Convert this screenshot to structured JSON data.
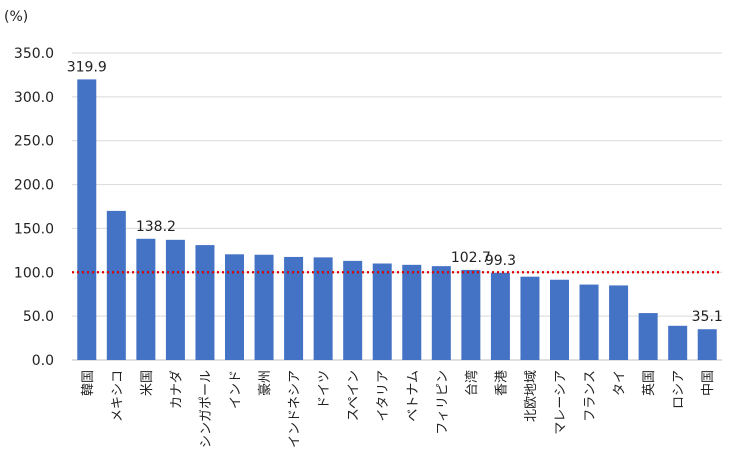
{
  "chart_data": {
    "type": "bar",
    "unit_label": "(%)",
    "categories": [
      "韓国",
      "メキシコ",
      "米国",
      "カナダ",
      "シンガポール",
      "インド",
      "豪州",
      "インドネシア",
      "ドイツ",
      "スペイン",
      "イタリア",
      "ベトナム",
      "フィリピン",
      "台湾",
      "香港",
      "北欧地域",
      "マレーシア",
      "フランス",
      "タイ",
      "英国",
      "ロシア",
      "中国"
    ],
    "values": [
      319.9,
      170.0,
      138.2,
      137.0,
      131.0,
      120.5,
      120.0,
      117.5,
      117.0,
      113.0,
      110.0,
      108.5,
      107.0,
      102.7,
      99.3,
      95.0,
      91.5,
      86.0,
      85.0,
      53.5,
      39.0,
      35.1
    ],
    "data_labels": {
      "0": "319.9",
      "2": "138.2",
      "13": "102.7",
      "14": "99.3",
      "21": "35.1"
    },
    "yticks": [
      "0.0",
      "50.0",
      "100.0",
      "150.0",
      "200.0",
      "250.0",
      "300.0",
      "350.0"
    ],
    "ylim": [
      0,
      350
    ],
    "reference_line": {
      "value": 100,
      "color": "#e00000",
      "style": "dotted"
    },
    "bar_color": "#4472c4",
    "grid": true
  }
}
